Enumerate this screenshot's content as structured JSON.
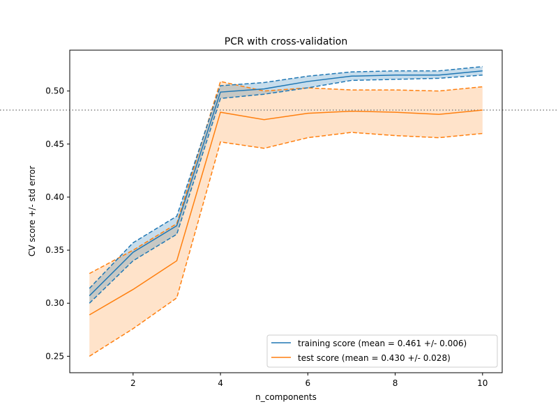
{
  "chart_data": {
    "type": "line",
    "title": "PCR with cross-validation",
    "xlabel": "n_components",
    "ylabel": "CV score +/- std error",
    "xlim": [
      0.55,
      10.45
    ],
    "ylim": [
      0.2345,
      0.5385
    ],
    "x_ticks": [
      2,
      4,
      6,
      8,
      10
    ],
    "y_ticks": [
      0.25,
      0.3,
      0.35,
      0.4,
      0.45,
      0.5
    ],
    "x_tick_labels": [
      "2",
      "4",
      "6",
      "8",
      "10"
    ],
    "y_tick_labels": [
      "0.25",
      "0.30",
      "0.35",
      "0.40",
      "0.45",
      "0.50"
    ],
    "x": [
      1,
      2,
      3,
      4,
      5,
      6,
      7,
      8,
      9,
      10
    ],
    "series": [
      {
        "name": "training score (mean = 0.461 +/- 0.006)",
        "color": "#1f77b4",
        "values": [
          0.307,
          0.348,
          0.373,
          0.499,
          0.502,
          0.509,
          0.514,
          0.515,
          0.515,
          0.519
        ],
        "upper": [
          0.314,
          0.357,
          0.382,
          0.505,
          0.508,
          0.514,
          0.518,
          0.519,
          0.519,
          0.523
        ],
        "lower": [
          0.3,
          0.34,
          0.365,
          0.493,
          0.497,
          0.503,
          0.51,
          0.511,
          0.512,
          0.515
        ]
      },
      {
        "name": "test score (mean = 0.430 +/- 0.028)",
        "color": "#ff7f0e",
        "values": [
          0.289,
          0.313,
          0.34,
          0.48,
          0.473,
          0.479,
          0.481,
          0.48,
          0.478,
          0.482
        ],
        "upper": [
          0.328,
          0.35,
          0.375,
          0.509,
          0.5,
          0.503,
          0.501,
          0.501,
          0.5,
          0.504
        ],
        "lower": [
          0.25,
          0.276,
          0.305,
          0.452,
          0.446,
          0.456,
          0.461,
          0.458,
          0.456,
          0.46
        ]
      }
    ],
    "reference_line": {
      "y": 0.482,
      "color": "#808080",
      "style": "dotted"
    },
    "legend_position": "lower-right",
    "grid": false
  }
}
